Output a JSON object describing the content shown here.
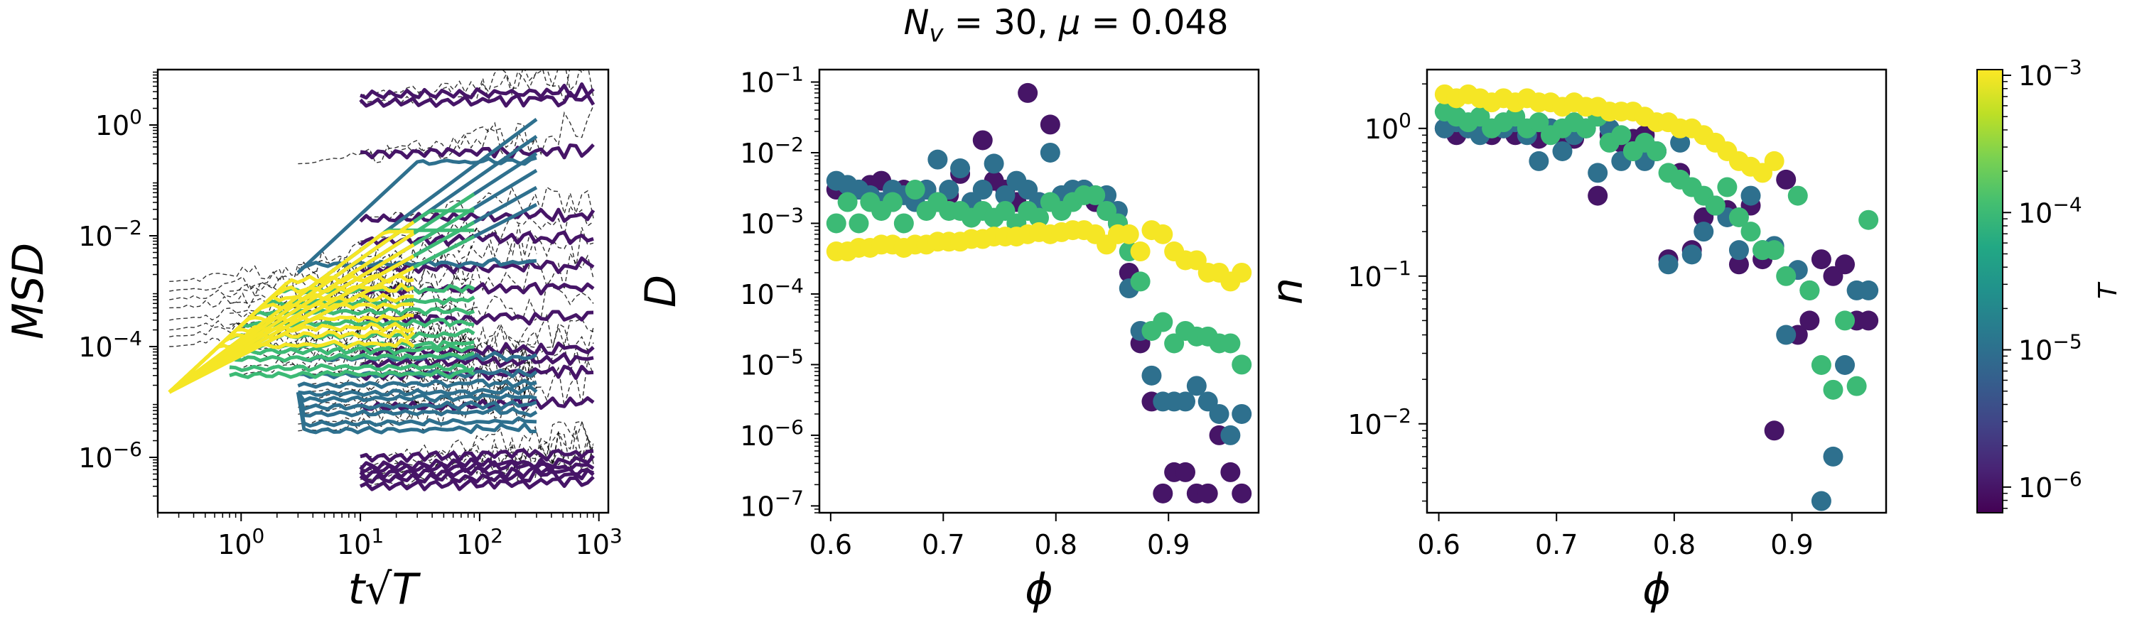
{
  "figure": {
    "title": "N_v = 30, μ = 0.048",
    "title_parts": [
      "N",
      "v",
      " = 30, ",
      "μ",
      " = 0.048"
    ]
  },
  "chart_data": [
    {
      "type": "line",
      "panel": "msd",
      "xlabel": "t√T",
      "ylabel": "MSD",
      "xscale": "log",
      "yscale": "log",
      "xlim": [
        0.2,
        1200
      ],
      "ylim": [
        1e-07,
        10
      ],
      "xticks": [
        1,
        10,
        100,
        1000
      ],
      "xtick_labels": [
        [
          "10",
          "0"
        ],
        [
          "10",
          "1"
        ],
        [
          "10",
          "2"
        ],
        [
          "10",
          "3"
        ]
      ],
      "yticks": [
        1e-06,
        0.0001,
        0.01,
        1
      ],
      "ytick_labels": [
        [
          "10",
          "−6"
        ],
        [
          "10",
          "−4"
        ],
        [
          "10",
          "−2"
        ],
        [
          "10",
          "0"
        ]
      ],
      "grid": false,
      "groups": [
        {
          "T": 1e-06,
          "x_range": [
            10,
            900
          ],
          "plateaus": [
            3e-07,
            4e-07,
            5e-07,
            6e-07,
            7e-07,
            1e-06,
            8e-06,
            3e-05,
            5e-05,
            8e-05,
            0.0003,
            0.001,
            0.0025,
            0.008,
            0.02,
            0.3,
            2.5,
            3.5
          ],
          "short_time": false
        },
        {
          "T": 1e-05,
          "x_range": [
            3,
            300
          ],
          "plateaus": [
            3e-06,
            4e-06,
            6e-06,
            8e-06,
            1.1e-05,
            1.4e-05,
            2e-05,
            3e-05,
            6e-05,
            0.003,
            0.2
          ],
          "short_time": true
        },
        {
          "T": 0.0001,
          "x_range": [
            0.8,
            90
          ],
          "plateaus": [
            3e-05,
            4e-05,
            6e-05,
            8e-05,
            0.0001,
            0.00015,
            0.00025,
            0.0004,
            0.0006,
            0.001
          ],
          "short_time": true
        },
        {
          "T": 0.001,
          "x_range": [
            0.25,
            28
          ],
          "plateaus": [
            0.0001,
            0.00015,
            0.0002,
            0.0003,
            0.0005,
            0.0007,
            0.001,
            0.0015
          ],
          "short_time": true
        }
      ]
    },
    {
      "type": "scatter",
      "panel": "D",
      "xlabel": "ϕ",
      "ylabel": "D",
      "xscale": "linear",
      "yscale": "log",
      "xlim": [
        0.59,
        0.98
      ],
      "ylim": [
        8e-08,
        0.15
      ],
      "xticks": [
        0.6,
        0.7,
        0.8,
        0.9
      ],
      "xtick_labels": [
        "0.6",
        "0.7",
        "0.8",
        "0.9"
      ],
      "yticks": [
        1e-07,
        1e-06,
        1e-05,
        0.0001,
        0.001,
        0.01,
        0.1
      ],
      "ytick_labels": [
        [
          "10",
          "−7"
        ],
        [
          "10",
          "−6"
        ],
        [
          "10",
          "−5"
        ],
        [
          "10",
          "−4"
        ],
        [
          "10",
          "−3"
        ],
        [
          "10",
          "−2"
        ],
        [
          "10",
          "−1"
        ]
      ],
      "grid": false,
      "series": [
        {
          "T": 1e-06,
          "x": [
            0.605,
            0.615,
            0.625,
            0.635,
            0.645,
            0.655,
            0.665,
            0.675,
            0.685,
            0.695,
            0.705,
            0.715,
            0.725,
            0.735,
            0.745,
            0.755,
            0.765,
            0.775,
            0.785,
            0.795,
            0.805,
            0.815,
            0.825,
            0.835,
            0.845,
            0.855,
            0.865,
            0.875,
            0.885,
            0.895,
            0.905,
            0.915,
            0.925,
            0.935,
            0.945,
            0.955,
            0.965
          ],
          "y": [
            0.003,
            0.0025,
            0.003,
            0.0035,
            0.004,
            0.002,
            0.003,
            0.0025,
            0.003,
            0.002,
            0.0025,
            0.005,
            0.002,
            0.015,
            0.004,
            0.003,
            0.002,
            0.07,
            0.002,
            0.025,
            0.002,
            0.0025,
            0.003,
            0.002,
            0.0015,
            0.001,
            0.0002,
            2e-05,
            3e-06,
            1.5e-07,
            3e-07,
            3e-07,
            1.5e-07,
            1.5e-07,
            1e-06,
            3e-07,
            1.5e-07
          ]
        },
        {
          "T": 1e-05,
          "x": [
            0.605,
            0.615,
            0.625,
            0.635,
            0.645,
            0.655,
            0.665,
            0.675,
            0.685,
            0.695,
            0.705,
            0.715,
            0.725,
            0.735,
            0.745,
            0.755,
            0.765,
            0.775,
            0.785,
            0.795,
            0.805,
            0.815,
            0.825,
            0.835,
            0.845,
            0.855,
            0.865,
            0.875,
            0.885,
            0.895,
            0.905,
            0.915,
            0.925,
            0.935,
            0.945,
            0.955,
            0.965
          ],
          "y": [
            0.004,
            0.0035,
            0.003,
            0.0025,
            0.002,
            0.003,
            0.0025,
            0.002,
            0.003,
            0.008,
            0.003,
            0.006,
            0.002,
            0.003,
            0.007,
            0.0025,
            0.004,
            0.003,
            0.002,
            0.01,
            0.0025,
            0.003,
            0.003,
            0.0025,
            0.0025,
            0.0015,
            0.00012,
            3e-05,
            7e-06,
            3e-06,
            3e-06,
            3e-06,
            5e-06,
            3e-06,
            2e-06,
            1e-06,
            2e-06
          ]
        },
        {
          "T": 0.0001,
          "x": [
            0.605,
            0.615,
            0.625,
            0.635,
            0.645,
            0.655,
            0.665,
            0.675,
            0.685,
            0.695,
            0.705,
            0.715,
            0.725,
            0.735,
            0.745,
            0.755,
            0.765,
            0.775,
            0.785,
            0.795,
            0.805,
            0.815,
            0.825,
            0.835,
            0.845,
            0.855,
            0.865,
            0.875,
            0.885,
            0.895,
            0.905,
            0.915,
            0.925,
            0.935,
            0.945,
            0.955,
            0.965
          ],
          "y": [
            0.001,
            0.002,
            0.001,
            0.002,
            0.0015,
            0.002,
            0.001,
            0.003,
            0.0015,
            0.002,
            0.0015,
            0.0015,
            0.0012,
            0.0015,
            0.0012,
            0.0015,
            0.001,
            0.0015,
            0.0012,
            0.002,
            0.0015,
            0.002,
            0.0025,
            0.0025,
            0.0015,
            0.001,
            0.0004,
            0.00015,
            3e-05,
            4e-05,
            2e-05,
            3e-05,
            2.5e-05,
            2.5e-05,
            2e-05,
            2e-05,
            1e-05
          ]
        },
        {
          "T": 0.001,
          "x": [
            0.605,
            0.615,
            0.625,
            0.635,
            0.645,
            0.655,
            0.665,
            0.675,
            0.685,
            0.695,
            0.705,
            0.715,
            0.725,
            0.735,
            0.745,
            0.755,
            0.765,
            0.775,
            0.785,
            0.795,
            0.805,
            0.815,
            0.825,
            0.835,
            0.845,
            0.855,
            0.865,
            0.875,
            0.885,
            0.895,
            0.905,
            0.915,
            0.925,
            0.935,
            0.945,
            0.955,
            0.965
          ],
          "y": [
            0.0004,
            0.0004,
            0.00045,
            0.00045,
            0.0005,
            0.0005,
            0.00045,
            0.0005,
            0.0005,
            0.00055,
            0.00055,
            0.00055,
            0.0006,
            0.0006,
            0.00065,
            0.00065,
            0.00065,
            0.0007,
            0.00075,
            0.0007,
            0.00075,
            0.0008,
            0.0008,
            0.0007,
            0.0005,
            0.0007,
            0.0007,
            0.0004,
            0.0008,
            0.0007,
            0.0004,
            0.0003,
            0.0003,
            0.0002,
            0.0002,
            0.00015,
            0.0002
          ]
        }
      ]
    },
    {
      "type": "scatter",
      "panel": "n",
      "xlabel": "ϕ",
      "ylabel": "n",
      "xscale": "linear",
      "yscale": "log",
      "xlim": [
        0.59,
        0.98
      ],
      "ylim": [
        0.0025,
        2.5
      ],
      "xticks": [
        0.6,
        0.7,
        0.8,
        0.9
      ],
      "xtick_labels": [
        "0.6",
        "0.7",
        "0.8",
        "0.9"
      ],
      "yticks": [
        0.01,
        0.1,
        1
      ],
      "ytick_labels": [
        [
          "10",
          "−2"
        ],
        [
          "10",
          "−1"
        ],
        [
          "10",
          "0"
        ]
      ],
      "grid": false,
      "series": [
        {
          "T": 1e-06,
          "x": [
            0.605,
            0.615,
            0.625,
            0.635,
            0.645,
            0.655,
            0.665,
            0.675,
            0.685,
            0.695,
            0.705,
            0.715,
            0.725,
            0.735,
            0.745,
            0.755,
            0.765,
            0.775,
            0.785,
            0.795,
            0.805,
            0.815,
            0.825,
            0.835,
            0.845,
            0.855,
            0.865,
            0.875,
            0.885,
            0.895,
            0.905,
            0.915,
            0.925,
            0.935,
            0.945,
            0.955,
            0.965
          ],
          "y": [
            1.0,
            0.9,
            1.0,
            0.95,
            0.9,
            1.0,
            0.9,
            0.95,
            0.85,
            1.0,
            0.9,
            0.85,
            1.0,
            0.35,
            0.9,
            0.8,
            0.85,
            0.9,
            0.7,
            0.13,
            0.5,
            0.15,
            0.25,
            0.3,
            0.28,
            0.12,
            0.3,
            0.13,
            0.009,
            0.45,
            0.04,
            0.05,
            0.13,
            0.1,
            0.12,
            0.05,
            0.05
          ]
        },
        {
          "T": 1e-05,
          "x": [
            0.605,
            0.615,
            0.625,
            0.635,
            0.645,
            0.655,
            0.665,
            0.675,
            0.685,
            0.695,
            0.705,
            0.715,
            0.725,
            0.735,
            0.745,
            0.755,
            0.765,
            0.775,
            0.785,
            0.795,
            0.805,
            0.815,
            0.825,
            0.835,
            0.845,
            0.855,
            0.865,
            0.875,
            0.885,
            0.895,
            0.905,
            0.915,
            0.925,
            0.935,
            0.945,
            0.955,
            0.965
          ],
          "y": [
            1.0,
            1.1,
            1.0,
            0.9,
            1.0,
            1.0,
            1.1,
            0.9,
            0.6,
            1.0,
            0.7,
            0.9,
            1.0,
            0.5,
            1.0,
            0.6,
            0.7,
            0.6,
            0.7,
            0.12,
            0.8,
            0.14,
            0.2,
            0.3,
            0.25,
            0.15,
            0.35,
            0.15,
            0.16,
            0.04,
            0.11,
            0.08,
            0.003,
            0.006,
            0.025,
            0.08,
            0.08
          ]
        },
        {
          "T": 0.0001,
          "x": [
            0.605,
            0.615,
            0.625,
            0.635,
            0.645,
            0.655,
            0.665,
            0.675,
            0.685,
            0.695,
            0.705,
            0.715,
            0.725,
            0.735,
            0.745,
            0.755,
            0.765,
            0.775,
            0.785,
            0.795,
            0.805,
            0.815,
            0.825,
            0.835,
            0.845,
            0.855,
            0.865,
            0.875,
            0.885,
            0.895,
            0.905,
            0.915,
            0.925,
            0.935,
            0.945,
            0.955,
            0.965
          ],
          "y": [
            1.3,
            1.2,
            1.1,
            1.2,
            1.0,
            1.1,
            1.2,
            1.0,
            1.1,
            0.9,
            1.0,
            1.1,
            1.0,
            1.2,
            0.8,
            0.9,
            0.7,
            0.8,
            0.7,
            0.5,
            0.45,
            0.4,
            0.35,
            0.3,
            0.4,
            0.25,
            0.2,
            0.15,
            0.15,
            0.1,
            0.35,
            0.08,
            0.025,
            0.017,
            0.05,
            0.018,
            0.24
          ]
        },
        {
          "T": 0.001,
          "x": [
            0.605,
            0.615,
            0.625,
            0.635,
            0.645,
            0.655,
            0.665,
            0.675,
            0.685,
            0.695,
            0.705,
            0.715,
            0.725,
            0.735,
            0.745,
            0.755,
            0.765,
            0.775,
            0.785,
            0.795,
            0.805,
            0.815,
            0.825,
            0.835,
            0.845,
            0.855,
            0.865,
            0.875,
            0.885
          ],
          "y": [
            1.7,
            1.6,
            1.7,
            1.6,
            1.5,
            1.6,
            1.5,
            1.6,
            1.5,
            1.5,
            1.4,
            1.5,
            1.4,
            1.4,
            1.3,
            1.3,
            1.3,
            1.2,
            1.1,
            1.1,
            1.0,
            1.0,
            0.9,
            0.8,
            0.7,
            0.6,
            0.55,
            0.5,
            0.6
          ]
        }
      ]
    }
  ],
  "colorbar": {
    "label": "T",
    "scale": "log",
    "range": [
      6.5e-07,
      0.0011
    ],
    "ticks": [
      1e-06,
      1e-05,
      0.0001,
      0.001
    ],
    "tick_labels": [
      [
        "10",
        "−6"
      ],
      [
        "10",
        "−5"
      ],
      [
        "10",
        "−4"
      ],
      [
        "10",
        "−3"
      ]
    ],
    "colormap": [
      "#440154",
      "#482475",
      "#414487",
      "#355f8d",
      "#2a788e",
      "#21918c",
      "#22a884",
      "#44bf70",
      "#7ad151",
      "#bddf26",
      "#fde725"
    ]
  },
  "colors": {
    "T_1e-6": "#440154",
    "T_1e-5": "#31688e",
    "T_1e-4": "#35b779",
    "T_1e-3": "#dde318",
    "reference_lines": "#000000"
  }
}
